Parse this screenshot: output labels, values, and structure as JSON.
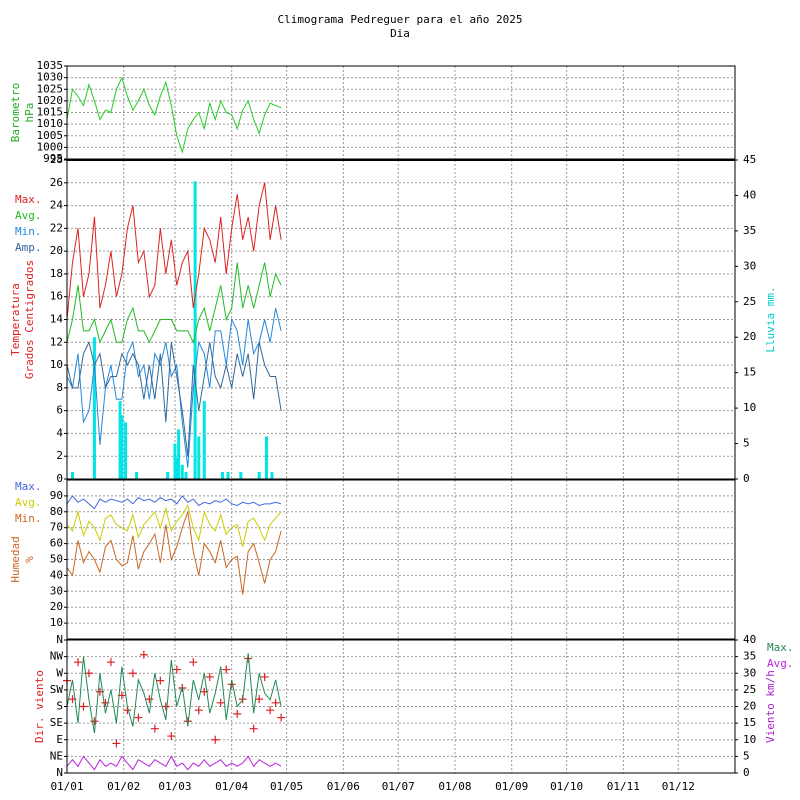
{
  "title": "Climograma Pedreguer para el año 2025",
  "subtitle": "Dia",
  "chart_data": [
    {
      "type": "line",
      "ylabel": [
        "Barometro",
        "hPa"
      ],
      "ylabel_color": "#22aa22",
      "grid": true,
      "x": [
        0,
        3,
        6,
        9,
        12,
        15,
        18,
        21,
        24,
        27,
        30,
        33,
        36,
        39,
        42,
        45,
        48,
        51,
        54,
        57,
        60,
        63,
        66,
        69,
        72,
        75,
        78,
        81,
        84,
        87,
        90,
        93,
        96,
        99,
        102,
        105,
        108,
        111,
        114,
        117
      ],
      "xlim": [
        0,
        365
      ],
      "ylim": [
        995,
        1035
      ],
      "yticks": [
        995,
        1000,
        1005,
        1010,
        1015,
        1020,
        1025,
        1030,
        1035
      ],
      "series": [
        {
          "color": "#22cc22",
          "values": [
            1012,
            1025,
            1022,
            1018,
            1027,
            1020,
            1012,
            1016,
            1015,
            1025,
            1030,
            1022,
            1016,
            1020,
            1025,
            1018,
            1014,
            1022,
            1028,
            1018,
            1005,
            998,
            1008,
            1012,
            1015,
            1008,
            1019,
            1012,
            1020,
            1015,
            1014,
            1008,
            1016,
            1020,
            1012,
            1006,
            1014,
            1019,
            1018,
            1017
          ]
        }
      ]
    },
    {
      "type": "line",
      "ylabel": [
        "Temperatura",
        "Grados Centigrados"
      ],
      "ylabel_color": "#dd2222",
      "grid": true,
      "legend": "left",
      "x": [
        0,
        3,
        6,
        9,
        12,
        15,
        18,
        21,
        24,
        27,
        30,
        33,
        36,
        39,
        42,
        45,
        48,
        51,
        54,
        57,
        60,
        63,
        66,
        69,
        72,
        75,
        78,
        81,
        84,
        87,
        90,
        93,
        96,
        99,
        102,
        105,
        108,
        111,
        114,
        117
      ],
      "xlim": [
        0,
        365
      ],
      "ylim": [
        0,
        28
      ],
      "yticks": [
        0,
        2,
        4,
        6,
        8,
        10,
        12,
        14,
        16,
        18,
        20,
        22,
        24,
        26,
        28
      ],
      "y2label": "Lluvia mm.",
      "y2label_color": "#00cccc",
      "y2lim": [
        0,
        45
      ],
      "y2ticks": [
        0,
        5,
        10,
        15,
        20,
        25,
        30,
        35,
        40,
        45
      ],
      "series": [
        {
          "name": "Max.",
          "color": "#dd2222",
          "values": [
            14,
            19,
            22,
            16,
            18,
            23,
            15,
            17,
            20,
            16,
            18,
            22,
            24,
            19,
            20,
            16,
            17,
            22,
            18,
            21,
            17,
            19,
            20,
            15,
            18,
            22,
            21,
            19,
            23,
            18,
            22,
            25,
            21,
            23,
            20,
            24,
            26,
            21,
            24,
            21
          ]
        },
        {
          "name": "Avg.",
          "color": "#22bb22",
          "values": [
            12,
            14,
            17,
            13,
            13,
            14,
            12,
            13,
            14,
            12,
            12,
            14,
            15,
            13,
            13,
            12,
            13,
            14,
            14,
            14,
            13,
            13,
            13,
            12,
            14,
            15,
            13,
            15,
            17,
            14,
            15,
            19,
            15,
            17,
            15,
            17,
            19,
            16,
            18,
            17
          ]
        },
        {
          "name": "Min.",
          "color": "#2288dd",
          "values": [
            9,
            8,
            11,
            5,
            6,
            10,
            3,
            8,
            10,
            7,
            7,
            11,
            12,
            9,
            10,
            7,
            11,
            10,
            12,
            9,
            10,
            5,
            1,
            8,
            12,
            11,
            8,
            13,
            13,
            10,
            14,
            13,
            10,
            14,
            11,
            12,
            14,
            12,
            15,
            13
          ]
        },
        {
          "name": "Amp.",
          "color": "#336699",
          "values": [
            10,
            8,
            8,
            11,
            12,
            10,
            11,
            8,
            9,
            9,
            11,
            10,
            11,
            10,
            7,
            10,
            7,
            11,
            5,
            12,
            9,
            6,
            2,
            10,
            6,
            9,
            12,
            9,
            8,
            10,
            8,
            11,
            9,
            11,
            7,
            12,
            10,
            9,
            9,
            6
          ]
        }
      ],
      "rain": {
        "color": "#00e5e5",
        "axis": "y2",
        "x": [
          3,
          15,
          29,
          30,
          32,
          38,
          55,
          59,
          60,
          61,
          63,
          65,
          70,
          72,
          75,
          85,
          88,
          95,
          105,
          109,
          112
        ],
        "values": [
          1,
          20,
          11,
          9,
          8,
          1,
          1,
          5,
          3,
          7,
          2,
          1,
          42,
          6,
          11,
          1,
          1,
          1,
          1,
          6,
          1
        ]
      }
    },
    {
      "type": "line",
      "ylabel": [
        "Humedad",
        "%"
      ],
      "ylabel_color": "#cc6622",
      "grid": true,
      "legend": "left",
      "x": [
        0,
        3,
        6,
        9,
        12,
        15,
        18,
        21,
        24,
        27,
        30,
        33,
        36,
        39,
        42,
        45,
        48,
        51,
        54,
        57,
        60,
        63,
        66,
        69,
        72,
        75,
        78,
        81,
        84,
        87,
        90,
        93,
        96,
        99,
        102,
        105,
        108,
        111,
        114,
        117
      ],
      "xlim": [
        0,
        365
      ],
      "ylim": [
        0,
        100
      ],
      "yticks": [
        10,
        20,
        30,
        40,
        50,
        60,
        70,
        80,
        90
      ],
      "series": [
        {
          "name": "Max.",
          "color": "#4466dd",
          "values": [
            85,
            90,
            86,
            88,
            85,
            82,
            88,
            86,
            88,
            87,
            86,
            88,
            85,
            89,
            87,
            88,
            86,
            89,
            87,
            88,
            85,
            90,
            86,
            88,
            84,
            86,
            85,
            87,
            86,
            88,
            85,
            84,
            86,
            85,
            86,
            84,
            85,
            85,
            86,
            85
          ]
        },
        {
          "name": "Avg.",
          "color": "#cccc00",
          "values": [
            72,
            68,
            80,
            65,
            74,
            70,
            62,
            76,
            78,
            72,
            70,
            68,
            78,
            64,
            72,
            76,
            80,
            70,
            82,
            68,
            74,
            78,
            84,
            70,
            62,
            80,
            72,
            68,
            78,
            66,
            70,
            72,
            58,
            74,
            76,
            70,
            62,
            72,
            76,
            80
          ]
        },
        {
          "name": "Min.",
          "color": "#cc6622",
          "values": [
            45,
            40,
            62,
            48,
            55,
            50,
            42,
            58,
            62,
            50,
            46,
            48,
            65,
            44,
            55,
            60,
            66,
            48,
            72,
            50,
            58,
            70,
            80,
            55,
            40,
            60,
            55,
            48,
            62,
            45,
            50,
            52,
            28,
            55,
            60,
            48,
            35,
            50,
            55,
            68
          ]
        }
      ]
    },
    {
      "type": "line",
      "ylabel": [
        "Dir. viento"
      ],
      "ylabel_color": "#dd2222",
      "grid": true,
      "legend": "right",
      "x": [
        0,
        3,
        6,
        9,
        12,
        15,
        18,
        21,
        24,
        27,
        30,
        33,
        36,
        39,
        42,
        45,
        48,
        51,
        54,
        57,
        60,
        63,
        66,
        69,
        72,
        75,
        78,
        81,
        84,
        87,
        90,
        93,
        96,
        99,
        102,
        105,
        108,
        111,
        114,
        117
      ],
      "xlim": [
        0,
        365
      ],
      "xticks": [
        {
          "value": 0,
          "label": "01/01"
        },
        {
          "value": 31,
          "label": "01/02"
        },
        {
          "value": 59,
          "label": "01/03"
        },
        {
          "value": 90,
          "label": "01/04"
        },
        {
          "value": 120,
          "label": "01/05"
        },
        {
          "value": 151,
          "label": "01/06"
        },
        {
          "value": 181,
          "label": "01/07"
        },
        {
          "value": 212,
          "label": "01/08"
        },
        {
          "value": 243,
          "label": "01/09"
        },
        {
          "value": 273,
          "label": "01/10"
        },
        {
          "value": 304,
          "label": "01/11"
        },
        {
          "value": 334,
          "label": "01/12"
        }
      ],
      "ylim": [
        0,
        360
      ],
      "yticks": [
        {
          "value": 0,
          "label": "N"
        },
        {
          "value": 45,
          "label": "NE"
        },
        {
          "value": 90,
          "label": "E"
        },
        {
          "value": 135,
          "label": "SE"
        },
        {
          "value": 180,
          "label": "S"
        },
        {
          "value": 225,
          "label": "SW"
        },
        {
          "value": 270,
          "label": "W"
        },
        {
          "value": 315,
          "label": "NW"
        },
        {
          "value": 360,
          "label": "N"
        }
      ],
      "y2label": "Viento km/h",
      "y2label_color": "#aa22cc",
      "y2lim": [
        0,
        40
      ],
      "y2ticks": [
        0,
        5,
        10,
        15,
        20,
        25,
        30,
        35,
        40
      ],
      "series": [
        {
          "color": "#dd2222",
          "style": "cross",
          "values": [
            250,
            200,
            300,
            180,
            270,
            140,
            220,
            190,
            300,
            80,
            210,
            170,
            270,
            150,
            320,
            200,
            120,
            250,
            180,
            100,
            280,
            230,
            140,
            300,
            170,
            220,
            260,
            90,
            190,
            280,
            240,
            160,
            200,
            310,
            120,
            200,
            260,
            170,
            190,
            150
          ]
        },
        {
          "name": "Max.",
          "color": "#228855",
          "axis": "y2",
          "values": [
            20,
            28,
            15,
            35,
            22,
            12,
            30,
            18,
            25,
            15,
            32,
            20,
            14,
            28,
            24,
            18,
            30,
            22,
            16,
            34,
            20,
            26,
            14,
            28,
            22,
            30,
            18,
            24,
            32,
            16,
            28,
            20,
            22,
            36,
            18,
            30,
            24,
            22,
            28,
            20
          ]
        },
        {
          "name": "Avg.",
          "color": "#bb22dd",
          "axis": "y2",
          "values": [
            2,
            4,
            2,
            5,
            3,
            1,
            4,
            2,
            3,
            2,
            5,
            3,
            1,
            4,
            3,
            2,
            4,
            3,
            2,
            5,
            2,
            3,
            1,
            3,
            2,
            4,
            2,
            3,
            4,
            2,
            3,
            2,
            3,
            5,
            2,
            4,
            3,
            2,
            3,
            2
          ]
        }
      ]
    }
  ]
}
